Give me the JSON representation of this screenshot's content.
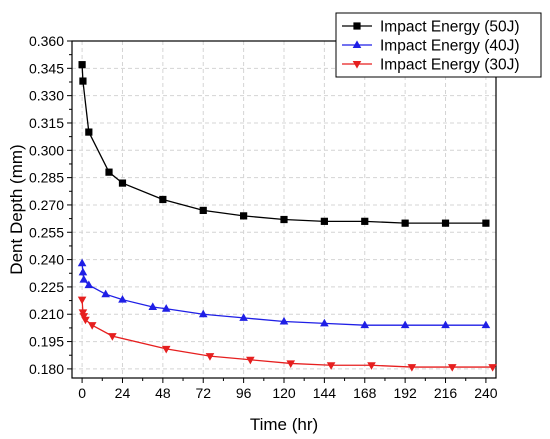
{
  "chart_data": {
    "type": "line",
    "title": "",
    "xlabel": "Time (hr)",
    "ylabel": "Dent Depth (mm)",
    "xlim": [
      -6,
      246
    ],
    "ylim": [
      0.175,
      0.36
    ],
    "x_ticks": [
      0,
      24,
      48,
      72,
      96,
      120,
      144,
      168,
      192,
      216,
      240
    ],
    "x_tick_labels": [
      "0",
      "24",
      "48",
      "72",
      "96",
      "120",
      "144",
      "168",
      "192",
      "216",
      "240"
    ],
    "y_ticks": [
      0.18,
      0.195,
      0.21,
      0.225,
      0.24,
      0.255,
      0.27,
      0.285,
      0.3,
      0.315,
      0.33,
      0.345,
      0.36
    ],
    "y_tick_labels": [
      "0.180",
      "0.195",
      "0.210",
      "0.225",
      "0.240",
      "0.255",
      "0.270",
      "0.285",
      "0.300",
      "0.315",
      "0.330",
      "0.345",
      "0.360"
    ],
    "grid": true,
    "legend_position": "top-right",
    "series": [
      {
        "name": "Impact Energy (50J)",
        "color": "#000000",
        "marker": "square",
        "x": [
          0,
          0.5,
          4,
          16,
          24,
          48,
          72,
          96,
          120,
          144,
          168,
          192,
          216,
          240
        ],
        "y": [
          0.347,
          0.338,
          0.31,
          0.288,
          0.282,
          0.273,
          0.267,
          0.264,
          0.262,
          0.261,
          0.261,
          0.26,
          0.26,
          0.26
        ]
      },
      {
        "name": "Impact Energy (40J)",
        "color": "#1f1fe6",
        "marker": "triangle-up",
        "x": [
          0,
          0.5,
          1,
          4,
          14,
          24,
          42,
          50,
          72,
          96,
          120,
          144,
          168,
          192,
          216,
          240
        ],
        "y": [
          0.238,
          0.233,
          0.229,
          0.226,
          0.221,
          0.218,
          0.214,
          0.213,
          0.21,
          0.208,
          0.206,
          0.205,
          0.204,
          0.204,
          0.204,
          0.204
        ]
      },
      {
        "name": "Impact Energy (30J)",
        "color": "#e61f1f",
        "marker": "triangle-down",
        "x": [
          0,
          0.5,
          1,
          2,
          6,
          18,
          50,
          76,
          100,
          124,
          148,
          172,
          196,
          220,
          244
        ],
        "y": [
          0.218,
          0.211,
          0.209,
          0.207,
          0.204,
          0.198,
          0.191,
          0.187,
          0.185,
          0.183,
          0.182,
          0.182,
          0.181,
          0.181,
          0.181
        ]
      }
    ]
  }
}
